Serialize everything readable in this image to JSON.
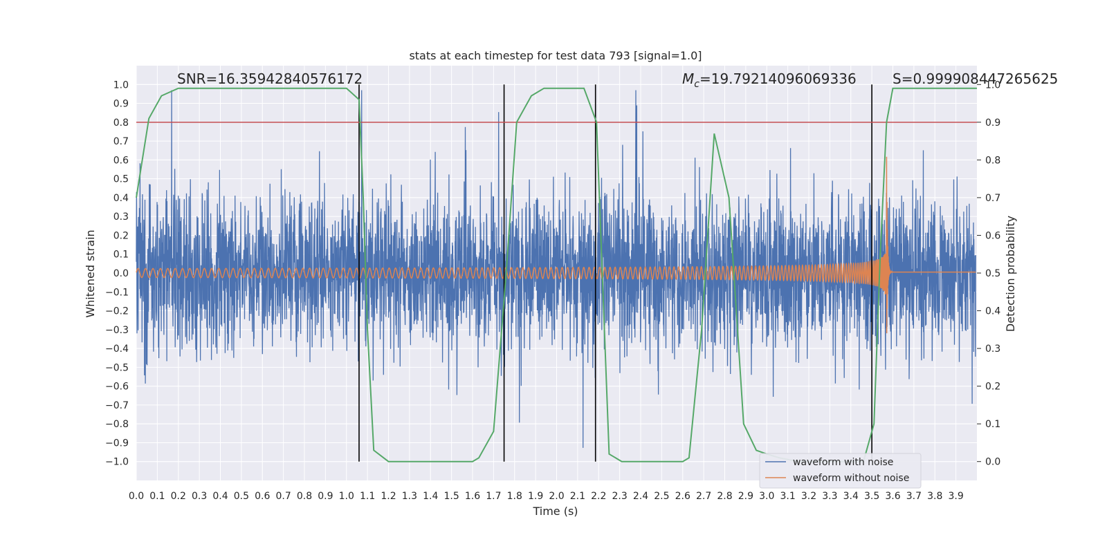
{
  "chart_data": {
    "type": "line",
    "title": "stats at each timestep for test data 793 [signal=1.0]",
    "xlabel": "Time (s)",
    "ylabel": "Whitened strain",
    "y2label": "Detection probability",
    "xlim": [
      0.0,
      4.0
    ],
    "ylim": [
      -1.1,
      1.1
    ],
    "y2lim": [
      -0.05,
      1.05
    ],
    "xticks": [
      "0.0",
      "0.1",
      "0.2",
      "0.3",
      "0.4",
      "0.5",
      "0.6",
      "0.7",
      "0.8",
      "0.9",
      "1.0",
      "1.1",
      "1.2",
      "1.3",
      "1.4",
      "1.5",
      "1.6",
      "1.7",
      "1.8",
      "1.9",
      "2.0",
      "2.1",
      "2.2",
      "2.3",
      "2.4",
      "2.5",
      "2.6",
      "2.7",
      "2.8",
      "2.9",
      "3.0",
      "3.1",
      "3.2",
      "3.3",
      "3.4",
      "3.5",
      "3.6",
      "3.7",
      "3.8",
      "3.9"
    ],
    "yticks": [
      "1.0",
      "0.9",
      "0.8",
      "0.7",
      "0.6",
      "0.5",
      "0.4",
      "0.3",
      "0.2",
      "0.1",
      "0.0",
      "−0.1",
      "−0.2",
      "−0.3",
      "−0.4",
      "−0.5",
      "−0.6",
      "−0.7",
      "−0.8",
      "−0.9",
      "−1.0"
    ],
    "y2ticks": [
      "1.0",
      "0.9",
      "0.8",
      "0.7",
      "0.6",
      "0.5",
      "0.4",
      "0.3",
      "0.2",
      "0.1",
      "0.0"
    ],
    "grid": true,
    "legend_position": "bottom-right",
    "annotations": {
      "snr": "SNR=16.35942840576172",
      "mc_symbol": "M",
      "mc_sub": "c",
      "mc_value": "=19.79214096069336",
      "s": "S=0.999908447265625"
    },
    "series": [
      {
        "name": "waveform with noise",
        "color": "#4c72b0",
        "kind": "noise",
        "amplitude_range": [
          -1.0,
          0.97
        ]
      },
      {
        "name": "waveform without noise",
        "color": "#dd8452",
        "kind": "chirp",
        "x_start": 0.0,
        "x_merger": 3.57,
        "peak": 0.65,
        "early_amplitude": 0.015,
        "ringdown_value": 0.005
      }
    ],
    "detection_probability": {
      "color": "#55a868",
      "axis": "right",
      "x": [
        0.0,
        0.06,
        0.12,
        0.2,
        1.0,
        1.06,
        1.08,
        1.1,
        1.13,
        1.2,
        1.6,
        1.63,
        1.7,
        1.76,
        1.81,
        1.88,
        1.94,
        2.13,
        2.19,
        2.25,
        2.31,
        2.6,
        2.63,
        2.69,
        2.75,
        2.82,
        2.89,
        2.95,
        3.0,
        3.06,
        3.15,
        3.4,
        3.46,
        3.51,
        3.54,
        3.57,
        3.6,
        3.62,
        4.0
      ],
      "y": [
        0.7,
        0.91,
        0.97,
        0.99,
        0.99,
        0.96,
        0.7,
        0.35,
        0.03,
        0.0,
        0.0,
        0.01,
        0.08,
        0.5,
        0.9,
        0.97,
        0.99,
        0.99,
        0.9,
        0.02,
        0.0,
        0.0,
        0.01,
        0.35,
        0.87,
        0.7,
        0.1,
        0.03,
        0.02,
        0.01,
        0.0,
        0.0,
        0.0,
        0.1,
        0.55,
        0.9,
        0.99,
        0.99,
        0.99
      ]
    },
    "threshold": {
      "color": "#c44e52",
      "value": 0.9,
      "axis": "right"
    },
    "vertical_lines": {
      "color": "#000000",
      "x": [
        1.06,
        1.75,
        2.185,
        3.5
      ]
    }
  }
}
